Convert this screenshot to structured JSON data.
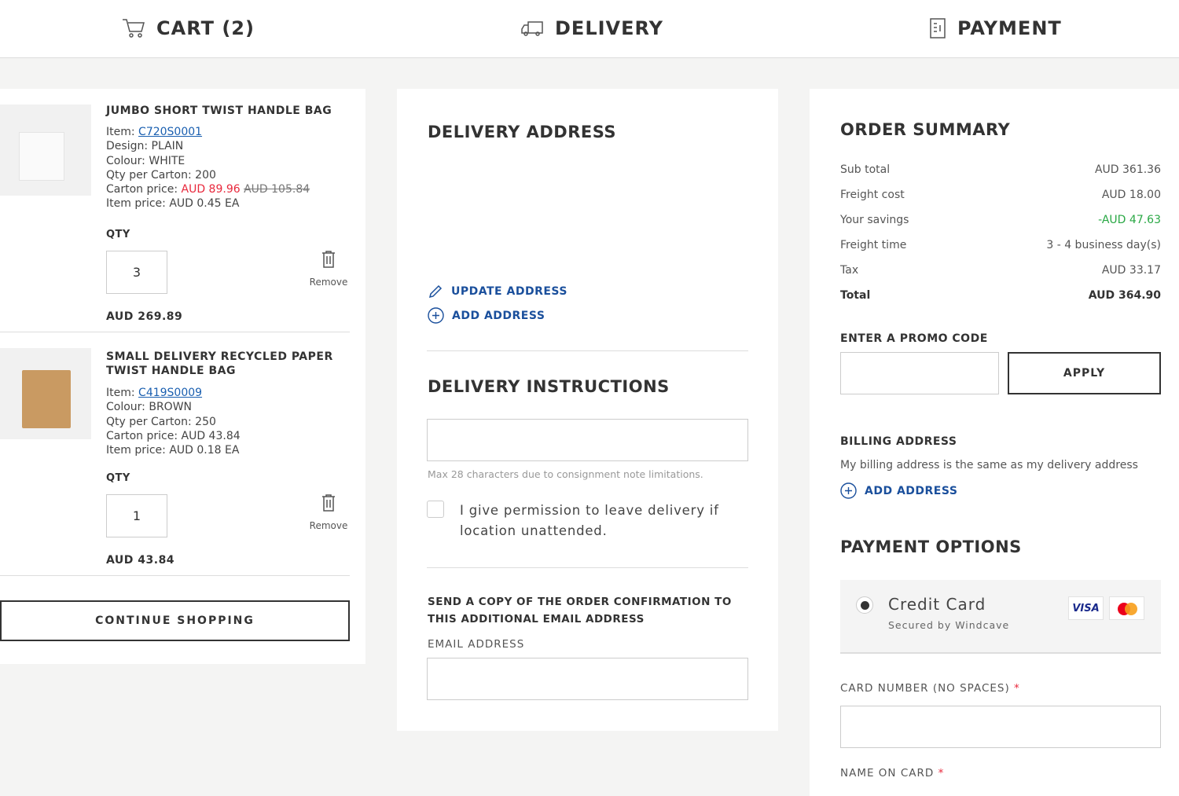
{
  "steps": [
    {
      "label": "CART (2)",
      "icon": "cart-icon"
    },
    {
      "label": "DELIVERY",
      "icon": "truck-icon"
    },
    {
      "label": "PAYMENT",
      "icon": "receipt-icon"
    }
  ],
  "cart": {
    "items": [
      {
        "name": "JUMBO SHORT TWIST HANDLE BAG",
        "item_label": "Item: ",
        "item_code": "C720S0001",
        "details": [
          "Design: PLAIN",
          "Colour: WHITE",
          "Qty per Carton: 200"
        ],
        "carton_label": "Carton price: ",
        "carton_price": "AUD 89.96",
        "carton_old": "AUD 105.84",
        "item_price": "Item price: AUD 0.45 EA",
        "qty_label": "QTY",
        "qty": "3",
        "remove": "Remove",
        "total": "AUD 269.89"
      },
      {
        "name": "SMALL DELIVERY RECYCLED PAPER TWIST HANDLE BAG",
        "item_label": "Item: ",
        "item_code": "C419S0009",
        "details": [
          "Colour: BROWN",
          "Qty per Carton: 250"
        ],
        "carton_label": "Carton price: ",
        "carton_price": "AUD 43.84",
        "carton_old": "",
        "item_price": "Item price: AUD 0.18 EA",
        "qty_label": "QTY",
        "qty": "1",
        "remove": "Remove",
        "total": "AUD 43.84"
      }
    ],
    "continue": "CONTINUE SHOPPING"
  },
  "delivery": {
    "title": "DELIVERY ADDRESS",
    "update": "UPDATE ADDRESS",
    "add": "ADD ADDRESS",
    "instructions_title": "DELIVERY INSTRUCTIONS",
    "instructions_value": "",
    "hint": "Max 28 characters due to consignment note limitations.",
    "permission": "I give permission to leave delivery if location unattended.",
    "copy_title": "SEND A COPY OF THE ORDER CONFIRMATION TO THIS ADDITIONAL EMAIL ADDRESS",
    "email_label": "EMAIL ADDRESS",
    "email_value": ""
  },
  "summary": {
    "title": "ORDER SUMMARY",
    "rows": [
      {
        "k": "Sub total",
        "v": "AUD 361.36"
      },
      {
        "k": "Freight cost",
        "v": "AUD 18.00"
      },
      {
        "k": "Your savings",
        "v": "-AUD 47.63"
      },
      {
        "k": "Freight time",
        "v": "3 - 4 business day(s)"
      },
      {
        "k": "Tax",
        "v": "AUD 33.17"
      },
      {
        "k": "Total",
        "v": "AUD 364.90"
      }
    ],
    "promo_label": "ENTER A PROMO CODE",
    "promo_value": "",
    "apply": "APPLY",
    "billing_title": "BILLING ADDRESS",
    "billing_text": "My billing address is the same as my delivery address",
    "billing_add": "ADD ADDRESS",
    "payment_title": "PAYMENT OPTIONS",
    "cc": "Credit Card",
    "cc_sub": "Secured by Windcave",
    "visa": "VISA",
    "card_label": "CARD NUMBER (NO SPACES)",
    "name_label": "NAME ON CARD",
    "required": "*"
  },
  "colors": {
    "accent": "#1a4f9c",
    "sale": "#e8283c",
    "savings": "#2aa845"
  }
}
